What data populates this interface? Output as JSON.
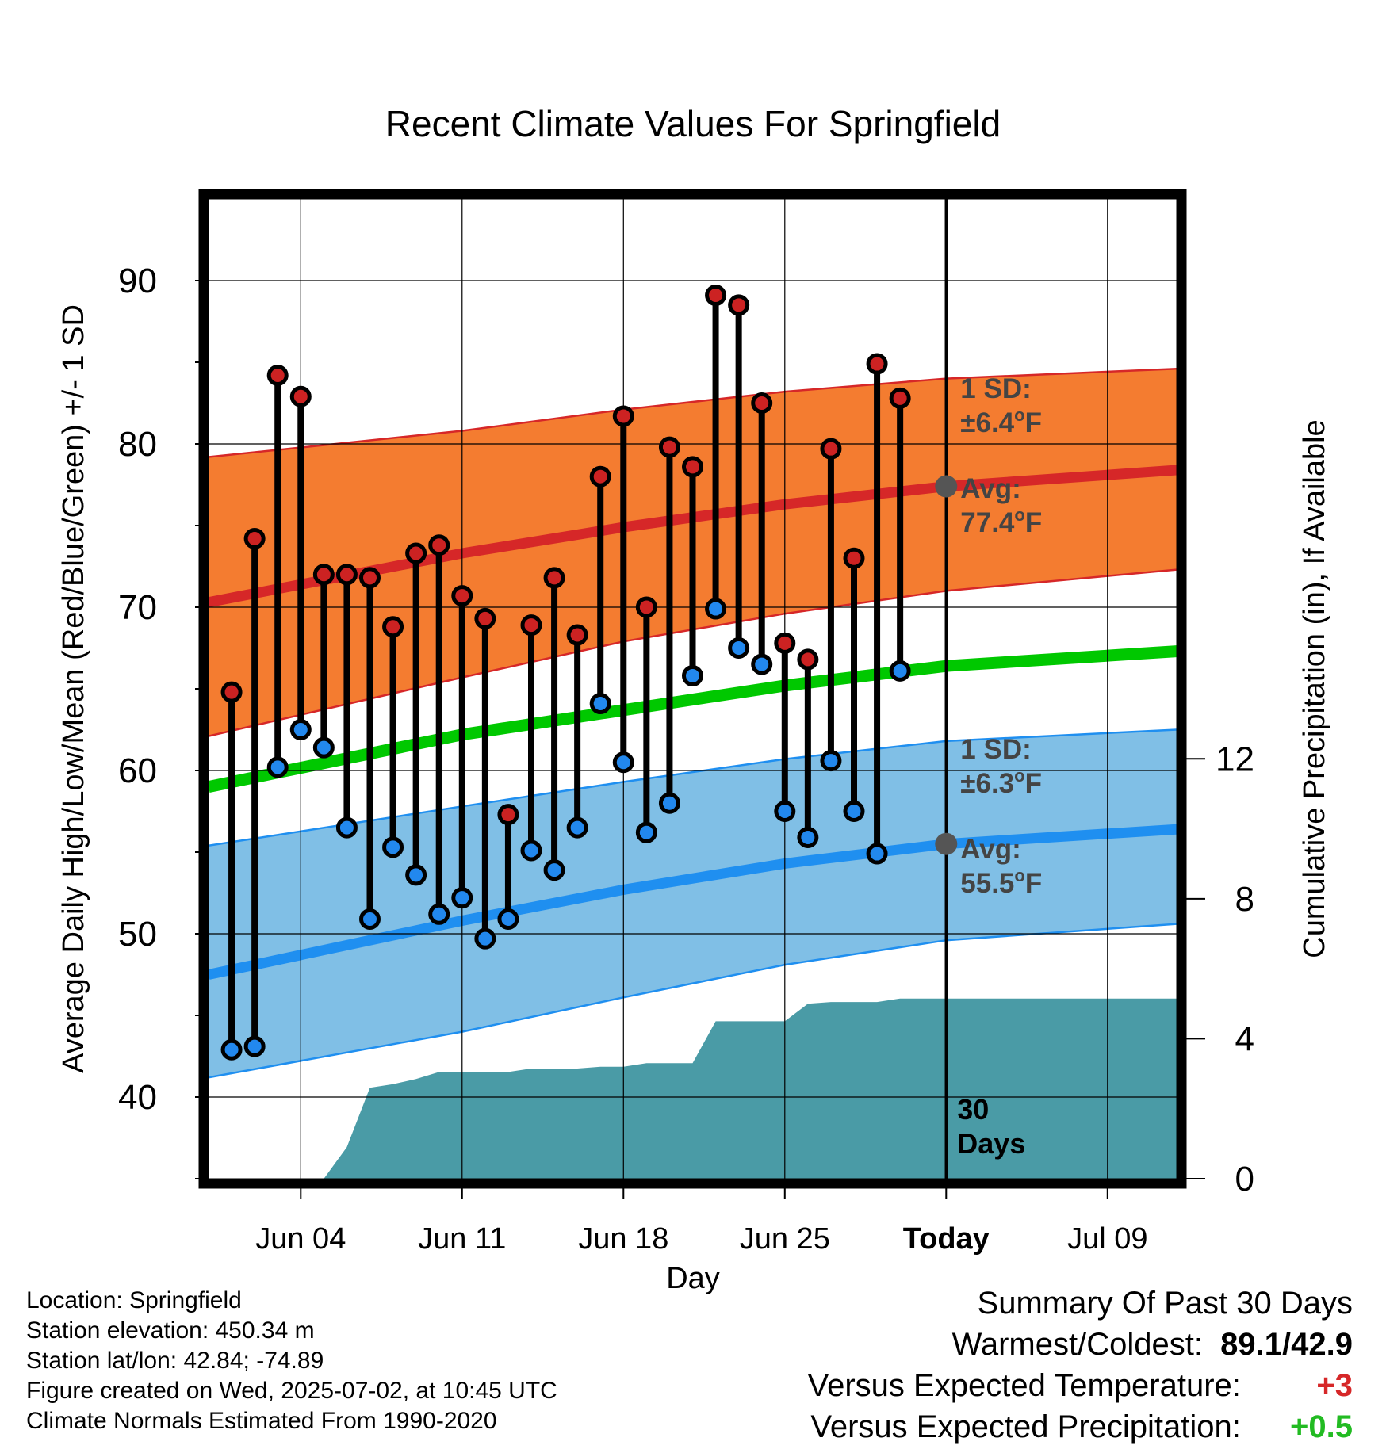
{
  "chart_data": {
    "type": "line",
    "title": "Recent Climate Values For Springfield",
    "xlabel": "Day",
    "ylabel": "Average Daily High/Low/Mean (Red/Blue/Green) +/- 1 SD",
    "y2label": "Cumulative Precipitation (in), If Available",
    "x_range": [
      "2025-05-31",
      "2025-07-12"
    ],
    "ylim": [
      35,
      95
    ],
    "y2lim": [
      0,
      28
    ],
    "y_ticks": [
      "40",
      "50",
      "60",
      "70",
      "80",
      "90"
    ],
    "y2_ticks": [
      "0",
      "4",
      "8",
      "12"
    ],
    "x_ticks": [
      {
        "date": "2025-06-04",
        "label": "Jun 04"
      },
      {
        "date": "2025-06-11",
        "label": "Jun 11"
      },
      {
        "date": "2025-06-18",
        "label": "Jun 18"
      },
      {
        "date": "2025-06-25",
        "label": "Jun 25"
      },
      {
        "date": "2025-07-02",
        "label": "Today"
      },
      {
        "date": "2025-07-09",
        "label": "Jul 09"
      }
    ],
    "today": "2025-07-02",
    "grid": true,
    "normals_x": [
      "2025-05-31",
      "2025-06-11",
      "2025-06-18",
      "2025-06-25",
      "2025-07-02",
      "2025-07-12"
    ],
    "normal_high": [
      70.3,
      73.3,
      74.9,
      76.3,
      77.4,
      78.4
    ],
    "normal_high_upper": [
      79.2,
      80.8,
      82.1,
      83.2,
      84.0,
      84.6
    ],
    "normal_high_lower": [
      62.1,
      65.7,
      67.9,
      69.6,
      71.0,
      72.3
    ],
    "normal_mean": [
      59.0,
      62.2,
      63.7,
      65.2,
      66.4,
      67.3
    ],
    "normal_low": [
      47.5,
      50.8,
      52.7,
      54.3,
      55.5,
      56.4
    ],
    "normal_low_upper": [
      55.4,
      57.8,
      59.3,
      60.7,
      61.8,
      62.5
    ],
    "normal_low_lower": [
      41.2,
      44.0,
      46.1,
      48.1,
      49.6,
      50.6
    ],
    "days": [
      "2025-06-01",
      "2025-06-02",
      "2025-06-03",
      "2025-06-04",
      "2025-06-05",
      "2025-06-06",
      "2025-06-07",
      "2025-06-08",
      "2025-06-09",
      "2025-06-10",
      "2025-06-11",
      "2025-06-12",
      "2025-06-13",
      "2025-06-14",
      "2025-06-15",
      "2025-06-16",
      "2025-06-17",
      "2025-06-18",
      "2025-06-19",
      "2025-06-20",
      "2025-06-21",
      "2025-06-22",
      "2025-06-23",
      "2025-06-24",
      "2025-06-25",
      "2025-06-26",
      "2025-06-27",
      "2025-06-28",
      "2025-06-29",
      "2025-06-30",
      "2025-07-01"
    ],
    "series": [
      {
        "name": "High",
        "values": [
          64.8,
          74.2,
          84.2,
          82.9,
          72.0,
          72.0,
          71.8,
          68.8,
          73.3,
          73.8,
          70.7,
          69.3,
          57.3,
          68.9,
          71.8,
          68.3,
          78.0,
          81.7,
          70.0,
          79.8,
          78.6,
          89.1,
          88.5,
          82.5,
          67.8,
          66.8,
          79.7,
          73.0,
          84.9,
          82.8,
          null
        ]
      },
      {
        "name": "Low",
        "values": [
          42.9,
          43.1,
          60.2,
          62.5,
          61.4,
          56.5,
          50.9,
          55.3,
          53.6,
          51.2,
          52.2,
          49.7,
          50.9,
          55.1,
          53.9,
          56.5,
          64.1,
          60.5,
          56.2,
          58.0,
          65.8,
          69.9,
          67.5,
          66.5,
          57.5,
          55.9,
          60.6,
          57.5,
          54.9,
          66.1,
          null
        ]
      }
    ],
    "precip_x": [
      "2025-06-02",
      "2025-06-03",
      "2025-06-04",
      "2025-06-05",
      "2025-06-06",
      "2025-06-07",
      "2025-06-08",
      "2025-06-09",
      "2025-06-10",
      "2025-06-11",
      "2025-06-12",
      "2025-06-13",
      "2025-06-14",
      "2025-06-15",
      "2025-06-16",
      "2025-06-17",
      "2025-06-18",
      "2025-06-19",
      "2025-06-20",
      "2025-06-21",
      "2025-06-22",
      "2025-06-23",
      "2025-06-24",
      "2025-06-25",
      "2025-06-26",
      "2025-06-27",
      "2025-06-28",
      "2025-06-29",
      "2025-06-30",
      "2025-07-01",
      "2025-07-02",
      "2025-07-12"
    ],
    "precip_cum": [
      0.0,
      0.0,
      0.0,
      0.0,
      0.9,
      2.6,
      2.7,
      2.85,
      3.05,
      3.05,
      3.05,
      3.05,
      3.15,
      3.15,
      3.15,
      3.2,
      3.2,
      3.3,
      3.3,
      3.3,
      4.5,
      4.5,
      4.5,
      4.5,
      5.0,
      5.05,
      5.05,
      5.05,
      5.15,
      5.15,
      5.15,
      5.15
    ],
    "annotations": {
      "high_sd": "1 SD:",
      "high_sd_value": "±6.4",
      "high_avg": "Avg:",
      "high_avg_value": "77.4",
      "low_sd": "1 SD:",
      "low_sd_value": "±6.3",
      "low_avg": "Avg:",
      "low_avg_value": "55.5",
      "degree_unit_sup": "o",
      "degree_unit": "F",
      "period_number": "30",
      "period_unit": "Days"
    },
    "colors": {
      "high_band": "#f47c30",
      "high_line": "#d62728",
      "low_band": "#80bfe6",
      "low_line": "#1f8ff0",
      "mean_line": "#00c800",
      "precip": "#4a9ba6",
      "high_dot": "#cc2222",
      "low_dot": "#2288ee",
      "marker": "#555555"
    }
  },
  "info": {
    "location": "Location: Springfield",
    "elevation": "Station elevation: 450.34 m",
    "latlon": "Station lat/lon: 42.84; -74.89",
    "created": "Figure created on Wed, 2025-07-02, at 10:45 UTC",
    "normals": "Climate Normals Estimated From 1990-2020"
  },
  "summary": {
    "title": "Summary Of Past 30 Days",
    "warmest_coldest_label": "Warmest/Coldest:",
    "warmest_coldest_value": "89.1/42.9",
    "temp_label": "Versus Expected Temperature:",
    "temp_value": "+3",
    "temp_color": "#d62728",
    "precip_label": "Versus Expected Precipitation:",
    "precip_value": "+0.5",
    "precip_color": "#22bb22"
  }
}
